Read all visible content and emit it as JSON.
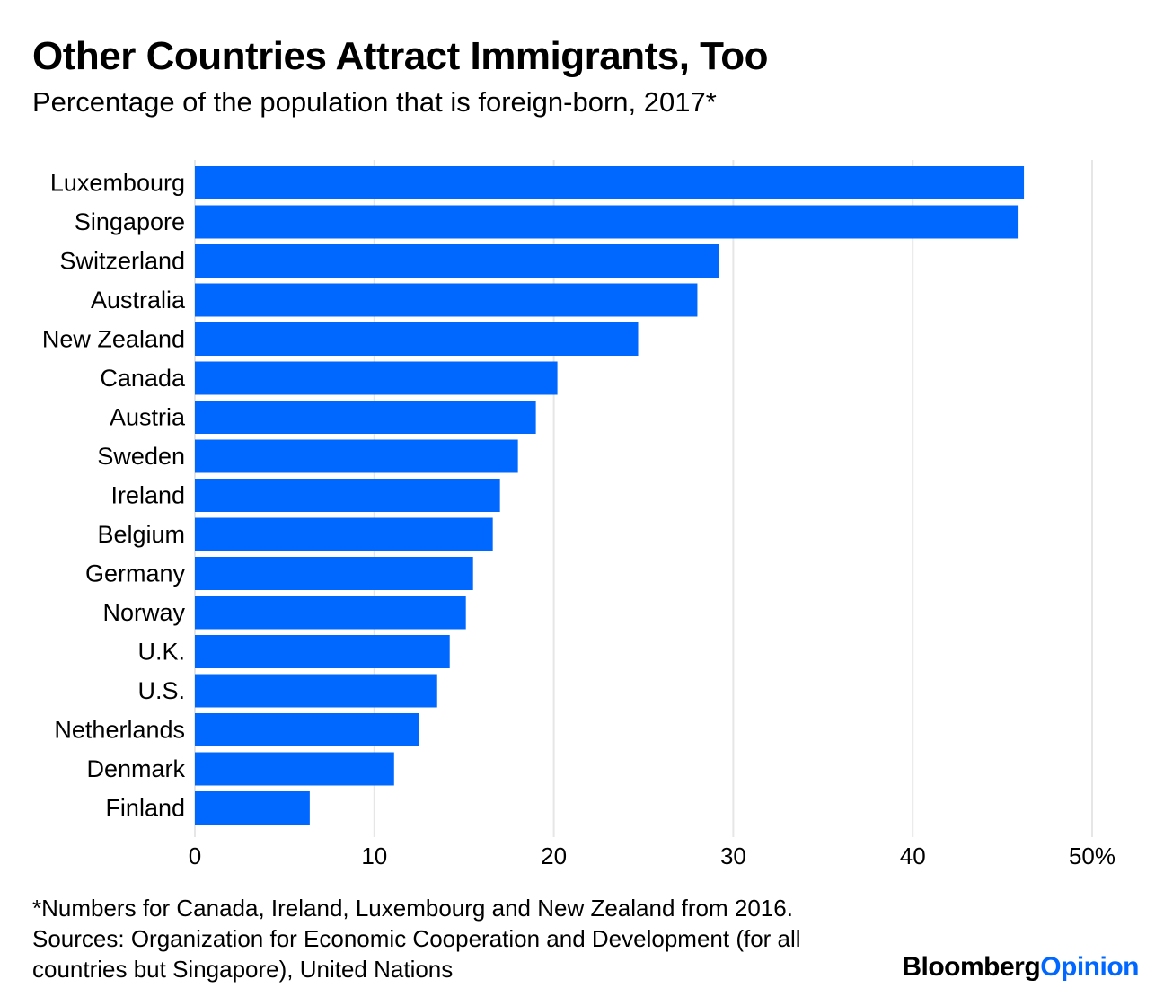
{
  "header": {
    "title": "Other Countries Attract Immigrants, Too",
    "subtitle": "Percentage of the population that is foreign-born, 2017*"
  },
  "chart_data": {
    "type": "bar",
    "orientation": "horizontal",
    "title": "Other Countries Attract Immigrants, Too",
    "subtitle": "Percentage of the population that is foreign-born, 2017*",
    "categories": [
      "Luxembourg",
      "Singapore",
      "Switzerland",
      "Australia",
      "New Zealand",
      "Canada",
      "Austria",
      "Sweden",
      "Ireland",
      "Belgium",
      "Germany",
      "Norway",
      "U.K.",
      "U.S.",
      "Netherlands",
      "Denmark",
      "Finland"
    ],
    "values": [
      46.2,
      45.9,
      29.2,
      28.0,
      24.7,
      20.2,
      19.0,
      18.0,
      17.0,
      16.6,
      15.5,
      15.1,
      14.2,
      13.5,
      12.5,
      11.1,
      6.4
    ],
    "xlabel": "",
    "ylabel": "",
    "xlim": [
      0,
      50
    ],
    "xticks": [
      0,
      10,
      20,
      30,
      40,
      50
    ],
    "xtick_labels": [
      "0",
      "10",
      "20",
      "30",
      "40",
      "50%"
    ],
    "grid": true,
    "bar_color": "#0068ff",
    "grid_color": "#e6e6e6"
  },
  "footer": {
    "note": "*Numbers for Canada, Ireland, Luxembourg and New Zealand from 2016.",
    "sources_line1": "Sources: Organization for Economic Cooperation and Development (for all",
    "sources_line2": "countries but Singapore), United Nations",
    "logo_part1": "Bloomberg",
    "logo_part2": "Opinion"
  }
}
